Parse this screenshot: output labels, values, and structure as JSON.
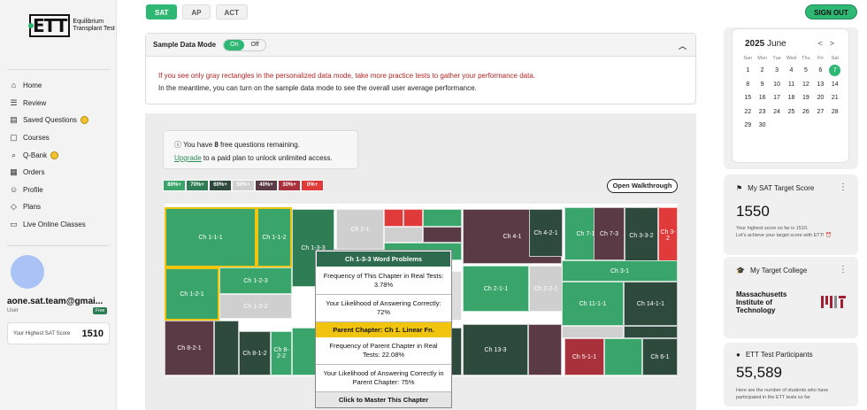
{
  "brand": {
    "logo": "ETT",
    "line1": "Equilibrium",
    "line2": "Transplant Test"
  },
  "tabs": [
    {
      "label": "SAT",
      "active": true
    },
    {
      "label": "AP",
      "active": false
    },
    {
      "label": "ACT",
      "active": false
    }
  ],
  "signout": "SIGN OUT",
  "sidebar": {
    "items": [
      {
        "label": "Home",
        "icon": "home-icon"
      },
      {
        "label": "Review",
        "icon": "review-icon"
      },
      {
        "label": "Saved Questions",
        "icon": "bookmark-icon",
        "coin": true
      },
      {
        "label": "Courses",
        "icon": "courses-icon"
      },
      {
        "label": "Q-Bank",
        "icon": "qbank-icon",
        "coin": true
      },
      {
        "label": "Orders",
        "icon": "orders-icon"
      },
      {
        "label": "Profile",
        "icon": "profile-icon"
      },
      {
        "label": "Plans",
        "icon": "plans-icon"
      },
      {
        "label": "Live Online Classes",
        "icon": "live-icon"
      }
    ],
    "user": {
      "name": "aone.sat.team@gmai...",
      "role": "User",
      "plan": "Free"
    },
    "score": {
      "label": "Your Highest SAT Score",
      "value": "1510"
    }
  },
  "sample_panel": {
    "title": "Sample Data Mode",
    "on": "On",
    "off": "Off",
    "warning": "If you see only gray rectangles in the personalized data mode, take more practice tests to gather your performance data.",
    "info": "In the meantime, you can turn on the sample data mode to see the overall user average performance."
  },
  "free_questions": {
    "prefix": "You have ",
    "count": "8",
    "suffix": " free questions remaining.",
    "link": "Upgrade",
    "tail": " to a paid plan to unlock unlimited access."
  },
  "legend": [
    {
      "label": "80%+",
      "color": "#3aa56b"
    },
    {
      "label": "70%+",
      "color": "#2f7d55"
    },
    {
      "label": "60%+",
      "color": "#2e4a3d"
    },
    {
      "label": "50%+",
      "color": "#cfcfcf"
    },
    {
      "label": "40%+",
      "color": "#5a3a44"
    },
    {
      "label": "30%+",
      "color": "#a8313b"
    },
    {
      "label": "0%+",
      "color": "#e03a3a"
    }
  ],
  "walkthrough": "Open Walkthrough",
  "treemap": {
    "blocks": [
      {
        "label": "Ch 1-1-1",
        "color": "#3aa56b",
        "hl": true
      },
      {
        "label": "Ch 1-1-2",
        "color": "#3aa56b",
        "hl": true
      },
      {
        "label": "Ch 1-3-3",
        "color": "#2f7d55"
      },
      {
        "label": "Ch 1-2-1",
        "color": "#3aa56b",
        "hl": true
      },
      {
        "label": "Ch 1-2-3",
        "color": "#3aa56b"
      },
      {
        "label": "Ch 1-2-2",
        "color": "#cfcfcf"
      },
      {
        "label": "Ch 2-1",
        "color": "#cfcfcf"
      },
      {
        "label": "Ch 4-1",
        "color": "#5a3a44"
      },
      {
        "label": "Ch 4-2-1",
        "color": "#2e4a3d"
      },
      {
        "label": "Ch 7-1",
        "color": "#3aa56b"
      },
      {
        "label": "Ch 7-3",
        "color": "#5a3a44"
      },
      {
        "label": "Ch 3-3-2",
        "color": "#2e4a3d"
      },
      {
        "label": "Ch 3-2",
        "color": "#e03a3a"
      },
      {
        "label": "Ch 3-1",
        "color": "#3aa56b"
      },
      {
        "label": "Ch 2-1-1",
        "color": "#3aa56b"
      },
      {
        "label": "Ch 2-2-1",
        "color": "#cfcfcf"
      },
      {
        "label": "Ch 11-1-1",
        "color": "#3aa56b"
      },
      {
        "label": "Ch 14-1-1",
        "color": "#2e4a3d"
      },
      {
        "label": "Ch 8-2-1",
        "color": "#5a3a44"
      },
      {
        "label": "Ch 8-1-2",
        "color": "#2e4a3d"
      },
      {
        "label": "Ch 8-2-2",
        "color": "#3aa56b"
      },
      {
        "label": "Ch 13-3",
        "color": "#2e4a3d"
      },
      {
        "label": "Ch 5-1-1",
        "color": "#a8313b"
      },
      {
        "label": "Ch 6-1",
        "color": "#2e4a3d"
      }
    ]
  },
  "popover": {
    "title": "Ch 1-3-3 Word Problems",
    "freq": "Frequency of This Chapter in Real Tests: 3.78%",
    "likely": "Your Likelihood of Answering Correctly: 72%",
    "parent": "Parent Chapter: Ch 1. Linear Fn.",
    "parent_freq": "Frequency of Parent Chapter in Real Tests: 22.08%",
    "parent_likely": "Your Likelihood of Answering Correctly in Parent Chapter: 75%",
    "cta": "Click to Master This Chapter"
  },
  "calendar": {
    "year": "2025",
    "month": "June",
    "days_header": [
      "Sun",
      "Mon",
      "Tue",
      "Wed",
      "Thu",
      "Fri",
      "Sat"
    ],
    "rows": [
      [
        "1",
        "2",
        "3",
        "4",
        "5",
        "6",
        "7"
      ],
      [
        "8",
        "9",
        "10",
        "11",
        "12",
        "13",
        "14"
      ],
      [
        "15",
        "16",
        "17",
        "18",
        "19",
        "20",
        "21"
      ],
      [
        "22",
        "23",
        "24",
        "25",
        "26",
        "27",
        "28"
      ],
      [
        "29",
        "30",
        "",
        "",
        "",
        "",
        ""
      ]
    ],
    "today": "7"
  },
  "target_score": {
    "title": "My SAT Target Score",
    "value": "1550",
    "note1": "Your highest score so far is 1510.",
    "note2": "Let's achieve your target score with ETT! ⏰"
  },
  "target_college": {
    "title": "My Target College",
    "name1": "Massachusetts",
    "name2": "Institute of",
    "name3": "Technology"
  },
  "participants": {
    "title": "ETT Test Participants",
    "value": "55,589",
    "note": "Here are the number of students who have participated in the ETT tests so far"
  }
}
